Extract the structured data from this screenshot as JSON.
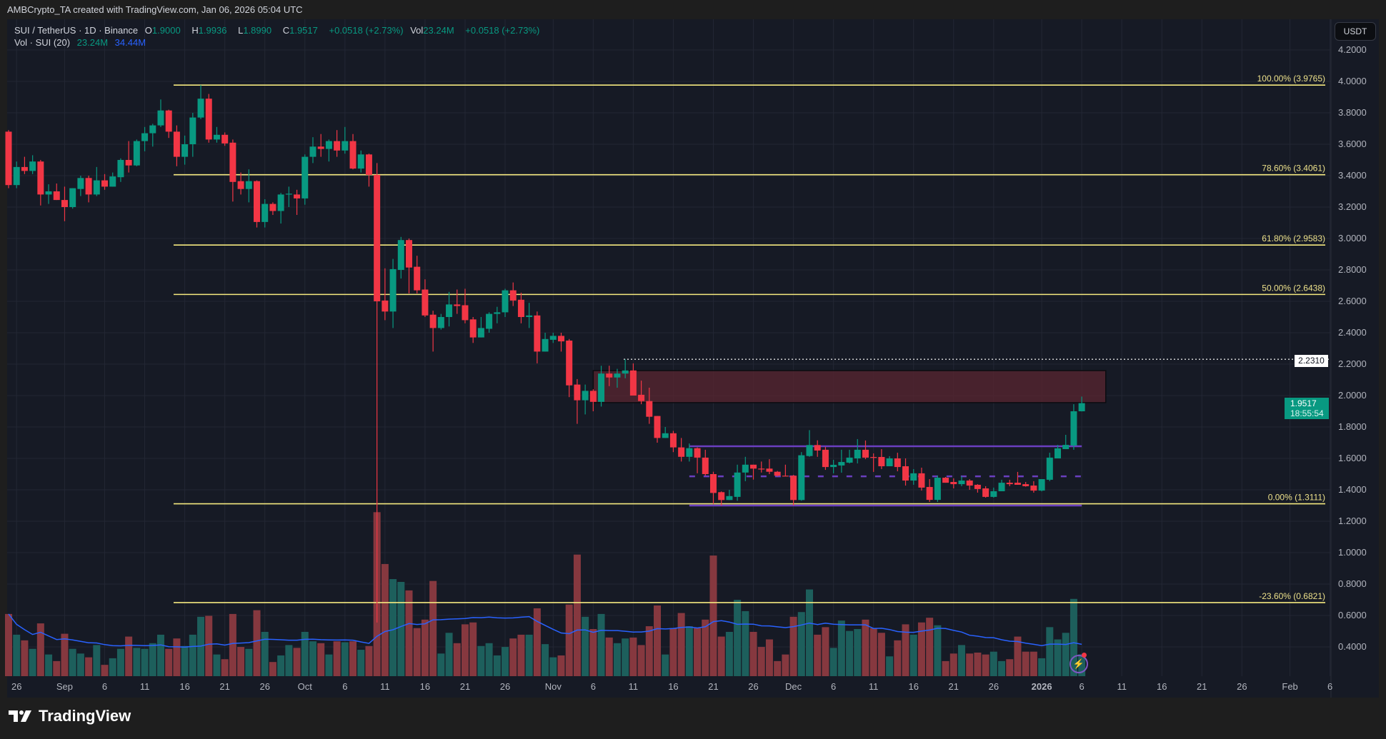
{
  "credit": "AMBCrypto_TA created with TradingView.com, Jan 06, 2026 05:04 UTC",
  "legend": {
    "symbol": "SUI / TetherUS · 1D · Binance",
    "o_label": "O",
    "o": "1.9000",
    "h_label": "H",
    "h": "1.9936",
    "l_label": "L",
    "l": "1.8990",
    "c_label": "C",
    "c": "1.9517",
    "change": "+0.0518 (+2.73%)",
    "vol_label": "Vol",
    "vol": "23.24M",
    "vol_change": "+0.0518 (+2.73%)",
    "vol_study": "Vol · SUI (20)",
    "vol_study_value": "23.24M",
    "vol_ma_value": "34.44M"
  },
  "currency_button": "USDT",
  "last_price": {
    "price": "1.9517",
    "countdown": "18:55:54"
  },
  "horizontal_line": {
    "price": 2.231,
    "label": "2.2310"
  },
  "brand": "TradingView",
  "colors": {
    "up": "#089981",
    "down": "#f23645",
    "fib": "#f5e97f",
    "zone": "#5a2530",
    "support": "#6a3fc0",
    "vol_ma": "#2962ff",
    "background": "#161a25"
  },
  "icons": [
    "tradingview-logo-icon",
    "lightning-icon"
  ],
  "chart_data": {
    "type": "candlestick",
    "title": "",
    "interval": "1D",
    "ylim": [
      0.3,
      4.28
    ],
    "y_ticks": [
      "4.2000",
      "4.0000",
      "3.8000",
      "3.6000",
      "3.4000",
      "3.2000",
      "3.0000",
      "2.8000",
      "2.6000",
      "2.4000",
      "2.2000",
      "2.0000",
      "1.8000",
      "1.6000",
      "1.4000",
      "1.2000",
      "1.0000",
      "0.8000",
      "0.6000",
      "0.4000"
    ],
    "x_ticks": [
      {
        "label": "26",
        "date": "2025-08-26"
      },
      {
        "label": "Sep",
        "date": "2025-09-01"
      },
      {
        "label": "6",
        "date": "2025-09-06"
      },
      {
        "label": "11",
        "date": "2025-09-11"
      },
      {
        "label": "16",
        "date": "2025-09-16"
      },
      {
        "label": "21",
        "date": "2025-09-21"
      },
      {
        "label": "26",
        "date": "2025-09-26"
      },
      {
        "label": "Oct",
        "date": "2025-10-01"
      },
      {
        "label": "6",
        "date": "2025-10-06"
      },
      {
        "label": "11",
        "date": "2025-10-11"
      },
      {
        "label": "16",
        "date": "2025-10-16"
      },
      {
        "label": "21",
        "date": "2025-10-21"
      },
      {
        "label": "26",
        "date": "2025-10-26"
      },
      {
        "label": "Nov",
        "date": "2025-11-01"
      },
      {
        "label": "6",
        "date": "2025-11-06"
      },
      {
        "label": "11",
        "date": "2025-11-11"
      },
      {
        "label": "16",
        "date": "2025-11-16"
      },
      {
        "label": "21",
        "date": "2025-11-21"
      },
      {
        "label": "26",
        "date": "2025-11-26"
      },
      {
        "label": "Dec",
        "date": "2025-12-01"
      },
      {
        "label": "6",
        "date": "2025-12-06"
      },
      {
        "label": "11",
        "date": "2025-12-11"
      },
      {
        "label": "16",
        "date": "2025-12-16"
      },
      {
        "label": "21",
        "date": "2025-12-21"
      },
      {
        "label": "26",
        "date": "2025-12-26"
      },
      {
        "label": "2026",
        "date": "2026-01-01"
      },
      {
        "label": "6",
        "date": "2026-01-06"
      },
      {
        "label": "11",
        "date": "2026-01-11"
      },
      {
        "label": "16",
        "date": "2026-01-16"
      },
      {
        "label": "21",
        "date": "2026-01-21"
      },
      {
        "label": "26",
        "date": "2026-01-26"
      },
      {
        "label": "Feb",
        "date": "2026-02-01"
      },
      {
        "label": "6",
        "date": "2026-02-06"
      }
    ],
    "fib_levels": [
      {
        "label": "100.00% (3.9765)",
        "price": 3.9765
      },
      {
        "label": "78.60% (3.4061)",
        "price": 3.4061
      },
      {
        "label": "61.80% (2.9583)",
        "price": 2.9583
      },
      {
        "label": "50.00% (2.6438)",
        "price": 2.6438
      },
      {
        "label": "0.00% (1.3111)",
        "price": 1.3111
      },
      {
        "label": "-23.60% (0.6821)",
        "price": 0.6821
      }
    ],
    "zone": {
      "from": "2025-11-06",
      "to": "2026-01-09",
      "top": 2.159,
      "bottom": 1.955
    },
    "range_lines": [
      {
        "from": "2025-11-18",
        "to": "2026-01-06",
        "price": 1.677,
        "style": "solid"
      },
      {
        "from": "2025-11-18",
        "to": "2026-01-06",
        "price": 1.486,
        "style": "dashed"
      },
      {
        "from": "2025-11-18",
        "to": "2026-01-06",
        "price": 1.3,
        "style": "solid"
      }
    ],
    "volume_unit": "M",
    "volume_ma_period": 20,
    "candles_columns": [
      "date",
      "open",
      "high",
      "low",
      "close",
      "volume"
    ],
    "candles": [
      [
        "2025-08-25",
        3.68,
        3.69,
        3.32,
        3.34,
        66
      ],
      [
        "2025-08-26",
        3.34,
        3.49,
        3.32,
        3.455,
        44
      ],
      [
        "2025-08-27",
        3.455,
        3.52,
        3.41,
        3.43,
        38
      ],
      [
        "2025-08-28",
        3.43,
        3.53,
        3.41,
        3.49,
        29
      ],
      [
        "2025-08-29",
        3.49,
        3.5,
        3.21,
        3.28,
        56
      ],
      [
        "2025-08-30",
        3.28,
        3.345,
        3.22,
        3.3,
        23
      ],
      [
        "2025-08-31",
        3.3,
        3.35,
        3.245,
        3.245,
        16
      ],
      [
        "2025-09-01",
        3.245,
        3.33,
        3.11,
        3.2,
        45
      ],
      [
        "2025-09-02",
        3.2,
        3.32,
        3.19,
        3.32,
        29
      ],
      [
        "2025-09-03",
        3.315,
        3.4,
        3.27,
        3.385,
        24
      ],
      [
        "2025-09-04",
        3.385,
        3.4,
        3.23,
        3.28,
        20
      ],
      [
        "2025-09-05",
        3.28,
        3.455,
        3.27,
        3.37,
        33
      ],
      [
        "2025-09-06",
        3.37,
        3.41,
        3.31,
        3.33,
        12
      ],
      [
        "2025-09-07",
        3.33,
        3.42,
        3.33,
        3.395,
        19
      ],
      [
        "2025-09-08",
        3.39,
        3.51,
        3.36,
        3.5,
        29
      ],
      [
        "2025-09-09",
        3.5,
        3.62,
        3.42,
        3.465,
        42
      ],
      [
        "2025-09-10",
        3.465,
        3.63,
        3.46,
        3.62,
        30
      ],
      [
        "2025-09-11",
        3.62,
        3.71,
        3.555,
        3.67,
        29
      ],
      [
        "2025-09-12",
        3.67,
        3.73,
        3.585,
        3.72,
        35
      ],
      [
        "2025-09-13",
        3.72,
        3.885,
        3.71,
        3.815,
        44
      ],
      [
        "2025-09-14",
        3.815,
        3.82,
        3.64,
        3.68,
        29
      ],
      [
        "2025-09-15",
        3.68,
        3.72,
        3.46,
        3.52,
        40
      ],
      [
        "2025-09-16",
        3.52,
        3.655,
        3.47,
        3.6,
        32
      ],
      [
        "2025-09-17",
        3.6,
        3.8,
        3.52,
        3.77,
        44
      ],
      [
        "2025-09-18",
        3.77,
        3.9765,
        3.76,
        3.89,
        63
      ],
      [
        "2025-09-19",
        3.89,
        3.92,
        3.61,
        3.63,
        64
      ],
      [
        "2025-09-20",
        3.63,
        3.71,
        3.61,
        3.66,
        23
      ],
      [
        "2025-09-21",
        3.66,
        3.675,
        3.59,
        3.605,
        18
      ],
      [
        "2025-09-22",
        3.61,
        3.63,
        3.235,
        3.36,
        66
      ],
      [
        "2025-09-23",
        3.365,
        3.42,
        3.28,
        3.315,
        31
      ],
      [
        "2025-09-24",
        3.315,
        3.44,
        3.23,
        3.365,
        29
      ],
      [
        "2025-09-25",
        3.365,
        3.37,
        3.07,
        3.105,
        70
      ],
      [
        "2025-09-26",
        3.105,
        3.25,
        3.07,
        3.22,
        47
      ],
      [
        "2025-09-27",
        3.22,
        3.23,
        3.15,
        3.175,
        15
      ],
      [
        "2025-09-28",
        3.175,
        3.29,
        3.095,
        3.28,
        22
      ],
      [
        "2025-09-29",
        3.28,
        3.33,
        3.2,
        3.285,
        33
      ],
      [
        "2025-09-30",
        3.28,
        3.31,
        3.15,
        3.255,
        30
      ],
      [
        "2025-10-01",
        3.255,
        3.535,
        3.215,
        3.52,
        47
      ],
      [
        "2025-10-02",
        3.52,
        3.645,
        3.48,
        3.585,
        37
      ],
      [
        "2025-10-03",
        3.585,
        3.665,
        3.52,
        3.57,
        35
      ],
      [
        "2025-10-04",
        3.57,
        3.63,
        3.49,
        3.62,
        23
      ],
      [
        "2025-10-05",
        3.62,
        3.69,
        3.52,
        3.56,
        37
      ],
      [
        "2025-10-06",
        3.56,
        3.71,
        3.54,
        3.62,
        36
      ],
      [
        "2025-10-07",
        3.62,
        3.665,
        3.44,
        3.445,
        37
      ],
      [
        "2025-10-08",
        3.445,
        3.56,
        3.42,
        3.535,
        28
      ],
      [
        "2025-10-09",
        3.535,
        3.54,
        3.33,
        3.405,
        32
      ],
      [
        "2025-10-10",
        3.405,
        3.48,
        0.555,
        2.6,
        174
      ],
      [
        "2025-10-11",
        2.605,
        2.81,
        2.48,
        2.535,
        119
      ],
      [
        "2025-10-12",
        2.535,
        2.87,
        2.43,
        2.805,
        103
      ],
      [
        "2025-10-13",
        2.8,
        3.01,
        2.745,
        2.99,
        100
      ],
      [
        "2025-10-14",
        2.99,
        3.0,
        2.65,
        2.815,
        91
      ],
      [
        "2025-10-15",
        2.82,
        2.89,
        2.65,
        2.67,
        51
      ],
      [
        "2025-10-16",
        2.675,
        2.74,
        2.5,
        2.51,
        60
      ],
      [
        "2025-10-17",
        2.515,
        2.54,
        2.28,
        2.43,
        101
      ],
      [
        "2025-10-18",
        2.43,
        2.52,
        2.42,
        2.5,
        24
      ],
      [
        "2025-10-19",
        2.5,
        2.66,
        2.44,
        2.58,
        46
      ],
      [
        "2025-10-20",
        2.58,
        2.675,
        2.52,
        2.57,
        35
      ],
      [
        "2025-10-21",
        2.575,
        2.68,
        2.46,
        2.48,
        55
      ],
      [
        "2025-10-22",
        2.485,
        2.5,
        2.335,
        2.37,
        57
      ],
      [
        "2025-10-23",
        2.37,
        2.5,
        2.37,
        2.43,
        32
      ],
      [
        "2025-10-24",
        2.425,
        2.53,
        2.4,
        2.52,
        35
      ],
      [
        "2025-10-25",
        2.52,
        2.565,
        2.46,
        2.53,
        22
      ],
      [
        "2025-10-26",
        2.53,
        2.68,
        2.5,
        2.67,
        31
      ],
      [
        "2025-10-27",
        2.67,
        2.72,
        2.57,
        2.605,
        40
      ],
      [
        "2025-10-28",
        2.61,
        2.655,
        2.46,
        2.5,
        44
      ],
      [
        "2025-10-29",
        2.5,
        2.59,
        2.43,
        2.51,
        44
      ],
      [
        "2025-10-30",
        2.51,
        2.535,
        2.205,
        2.28,
        72
      ],
      [
        "2025-10-31",
        2.28,
        2.4,
        2.28,
        2.36,
        34
      ],
      [
        "2025-11-01",
        2.355,
        2.4,
        2.335,
        2.38,
        20
      ],
      [
        "2025-11-02",
        2.38,
        2.4,
        2.28,
        2.345,
        22
      ],
      [
        "2025-11-03",
        2.35,
        2.36,
        1.99,
        2.065,
        76
      ],
      [
        "2025-11-04",
        2.07,
        2.105,
        1.82,
        1.97,
        129
      ],
      [
        "2025-11-05",
        1.97,
        2.07,
        1.88,
        2.03,
        63
      ],
      [
        "2025-11-06",
        2.03,
        2.04,
        1.9,
        1.96,
        50
      ],
      [
        "2025-11-07",
        1.96,
        2.19,
        1.93,
        2.14,
        66
      ],
      [
        "2025-11-08",
        2.14,
        2.19,
        2.06,
        2.115,
        41
      ],
      [
        "2025-11-09",
        2.115,
        2.17,
        2.05,
        2.14,
        35
      ],
      [
        "2025-11-10",
        2.14,
        2.231,
        2.11,
        2.16,
        40
      ],
      [
        "2025-11-11",
        2.16,
        2.205,
        2.0,
        2.0,
        41
      ],
      [
        "2025-11-12",
        2.005,
        2.095,
        1.945,
        1.965,
        33
      ],
      [
        "2025-11-13",
        1.965,
        2.05,
        1.82,
        1.865,
        53
      ],
      [
        "2025-11-14",
        1.87,
        1.87,
        1.7,
        1.73,
        75
      ],
      [
        "2025-11-15",
        1.73,
        1.8,
        1.73,
        1.76,
        23
      ],
      [
        "2025-11-16",
        1.76,
        1.775,
        1.64,
        1.67,
        51
      ],
      [
        "2025-11-17",
        1.67,
        1.73,
        1.58,
        1.61,
        67
      ],
      [
        "2025-11-18",
        1.61,
        1.695,
        1.58,
        1.665,
        53
      ],
      [
        "2025-11-19",
        1.665,
        1.67,
        1.505,
        1.605,
        51
      ],
      [
        "2025-11-20",
        1.605,
        1.655,
        1.49,
        1.5,
        60
      ],
      [
        "2025-11-21",
        1.5,
        1.515,
        1.31,
        1.38,
        128
      ],
      [
        "2025-11-22",
        1.385,
        1.39,
        1.3,
        1.335,
        42
      ],
      [
        "2025-11-23",
        1.335,
        1.4,
        1.335,
        1.36,
        47
      ],
      [
        "2025-11-24",
        1.355,
        1.56,
        1.33,
        1.51,
        81
      ],
      [
        "2025-11-25",
        1.51,
        1.61,
        1.455,
        1.56,
        69
      ],
      [
        "2025-11-26",
        1.56,
        1.56,
        1.465,
        1.535,
        47
      ],
      [
        "2025-11-27",
        1.535,
        1.58,
        1.51,
        1.53,
        31
      ],
      [
        "2025-11-28",
        1.535,
        1.595,
        1.5,
        1.515,
        39
      ],
      [
        "2025-11-29",
        1.515,
        1.52,
        1.485,
        1.49,
        16
      ],
      [
        "2025-11-30",
        1.49,
        1.56,
        1.488,
        1.489,
        23
      ],
      [
        "2025-12-01",
        1.49,
        1.495,
        1.3,
        1.335,
        63
      ],
      [
        "2025-12-02",
        1.335,
        1.64,
        1.33,
        1.62,
        68
      ],
      [
        "2025-12-03",
        1.615,
        1.78,
        1.61,
        1.685,
        92
      ],
      [
        "2025-12-04",
        1.685,
        1.715,
        1.61,
        1.65,
        44
      ],
      [
        "2025-12-05",
        1.655,
        1.673,
        1.527,
        1.545,
        52
      ],
      [
        "2025-12-06",
        1.545,
        1.591,
        1.505,
        1.559,
        30
      ],
      [
        "2025-12-07",
        1.555,
        1.655,
        1.509,
        1.577,
        59
      ],
      [
        "2025-12-08",
        1.573,
        1.655,
        1.568,
        1.605,
        48
      ],
      [
        "2025-12-09",
        1.6,
        1.723,
        1.568,
        1.655,
        50
      ],
      [
        "2025-12-10",
        1.655,
        1.714,
        1.595,
        1.605,
        60
      ],
      [
        "2025-12-11",
        1.609,
        1.632,
        1.514,
        1.607,
        51
      ],
      [
        "2025-12-12",
        1.609,
        1.659,
        1.532,
        1.55,
        46
      ],
      [
        "2025-12-13",
        1.55,
        1.614,
        1.55,
        1.6,
        21
      ],
      [
        "2025-12-14",
        1.6,
        1.636,
        1.518,
        1.545,
        38
      ],
      [
        "2025-12-15",
        1.55,
        1.6,
        1.427,
        1.459,
        55
      ],
      [
        "2025-12-16",
        1.459,
        1.532,
        1.432,
        1.505,
        44
      ],
      [
        "2025-12-17",
        1.505,
        1.541,
        1.395,
        1.414,
        57
      ],
      [
        "2025-12-18",
        1.418,
        1.468,
        1.323,
        1.336,
        62
      ],
      [
        "2025-12-19",
        1.336,
        1.491,
        1.323,
        1.477,
        54
      ],
      [
        "2025-12-20",
        1.477,
        1.482,
        1.445,
        1.445,
        16
      ],
      [
        "2025-12-21",
        1.45,
        1.473,
        1.409,
        1.436,
        24
      ],
      [
        "2025-12-22",
        1.436,
        1.486,
        1.423,
        1.459,
        33
      ],
      [
        "2025-12-23",
        1.459,
        1.468,
        1.4,
        1.427,
        24
      ],
      [
        "2025-12-24",
        1.432,
        1.436,
        1.382,
        1.405,
        25
      ],
      [
        "2025-12-25",
        1.409,
        1.423,
        1.35,
        1.355,
        23
      ],
      [
        "2025-12-26",
        1.355,
        1.414,
        1.35,
        1.391,
        26
      ],
      [
        "2025-12-27",
        1.391,
        1.464,
        1.391,
        1.445,
        16
      ],
      [
        "2025-12-28",
        1.445,
        1.464,
        1.423,
        1.436,
        18
      ],
      [
        "2025-12-29",
        1.445,
        1.514,
        1.432,
        1.432,
        42
      ],
      [
        "2025-12-30",
        1.436,
        1.45,
        1.42,
        1.423,
        26
      ],
      [
        "2025-12-31",
        1.427,
        1.455,
        1.382,
        1.395,
        26
      ],
      [
        "2026-01-01",
        1.395,
        1.468,
        1.39,
        1.468,
        19
      ],
      [
        "2026-01-02",
        1.464,
        1.636,
        1.455,
        1.605,
        52
      ],
      [
        "2026-01-03",
        1.6,
        1.686,
        1.6,
        1.664,
        39
      ],
      [
        "2026-01-04",
        1.659,
        1.75,
        1.659,
        1.686,
        46
      ],
      [
        "2026-01-05",
        1.682,
        1.945,
        1.655,
        1.9,
        82
      ],
      [
        "2026-01-06",
        1.9,
        1.9936,
        1.899,
        1.9517,
        23.24
      ]
    ]
  }
}
